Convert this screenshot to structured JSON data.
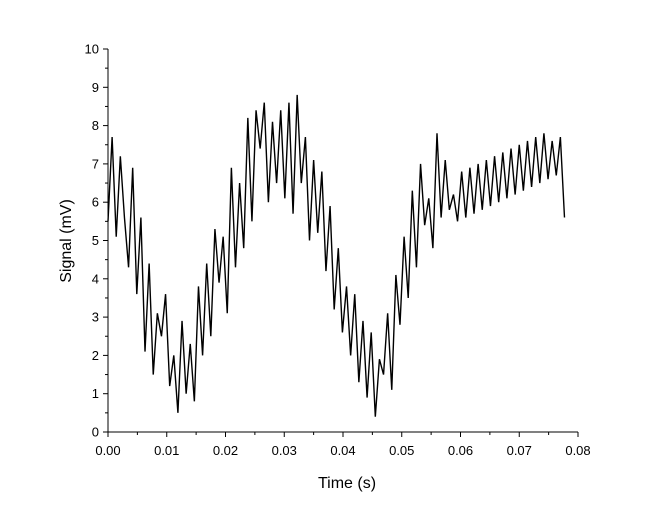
{
  "chart_data": {
    "type": "line",
    "title": "",
    "xlabel": "Time (s)",
    "ylabel": "Signal (mV)",
    "xlim": [
      0,
      0.08
    ],
    "ylim": [
      0,
      10
    ],
    "x_ticks": [
      0.0,
      0.01,
      0.02,
      0.03,
      0.04,
      0.05,
      0.06,
      0.07,
      0.08
    ],
    "x_tick_labels": [
      "0.00",
      "0.01",
      "0.02",
      "0.03",
      "0.04",
      "0.05",
      "0.06",
      "0.07",
      "0.08"
    ],
    "y_ticks": [
      0,
      1,
      2,
      3,
      4,
      5,
      6,
      7,
      8,
      9,
      10
    ],
    "y_tick_labels": [
      "0",
      "1",
      "2",
      "3",
      "4",
      "5",
      "6",
      "7",
      "8",
      "9",
      "10"
    ],
    "grid": false,
    "legend": "none",
    "line_color": "#000000",
    "series": [
      {
        "x": [
          0.0,
          0.0007,
          0.0014,
          0.0021,
          0.0028,
          0.0035,
          0.0042,
          0.0049,
          0.0056,
          0.0063,
          0.007,
          0.0077,
          0.0084,
          0.0091,
          0.0098,
          0.0105,
          0.0112,
          0.0119,
          0.0126,
          0.0133,
          0.014,
          0.0147,
          0.0154,
          0.0161,
          0.0168,
          0.0175,
          0.0182,
          0.0189,
          0.0196,
          0.0203,
          0.021,
          0.0217,
          0.0224,
          0.0231,
          0.0238,
          0.0245,
          0.0252,
          0.0259,
          0.0266,
          0.0273,
          0.028,
          0.0287,
          0.0294,
          0.0301,
          0.0308,
          0.0315,
          0.0322,
          0.0329,
          0.0336,
          0.0343,
          0.035,
          0.0357,
          0.0364,
          0.0371,
          0.0378,
          0.0385,
          0.0392,
          0.0399,
          0.0406,
          0.0413,
          0.042,
          0.0427,
          0.0434,
          0.0441,
          0.0448,
          0.0455,
          0.0462,
          0.0469,
          0.0476,
          0.0483,
          0.049,
          0.0497,
          0.0504,
          0.0511,
          0.0518,
          0.0525,
          0.0532,
          0.0539,
          0.0546,
          0.0553,
          0.056,
          0.0567,
          0.0574,
          0.0581,
          0.0588,
          0.0595,
          0.0602,
          0.0609,
          0.0616,
          0.0623,
          0.063,
          0.0637,
          0.0644,
          0.0651,
          0.0658,
          0.0665,
          0.0672,
          0.0679,
          0.0686,
          0.0693,
          0.07,
          0.0707,
          0.0714,
          0.0721,
          0.0728,
          0.0735,
          0.0742,
          0.0749,
          0.0756,
          0.0763,
          0.077,
          0.0777
        ],
        "y": [
          5.5,
          7.7,
          5.1,
          7.2,
          5.6,
          4.3,
          6.9,
          3.6,
          5.6,
          2.1,
          4.4,
          1.5,
          3.1,
          2.5,
          3.6,
          1.2,
          2.0,
          0.5,
          2.9,
          1.0,
          2.3,
          0.8,
          3.8,
          2.0,
          4.4,
          2.5,
          5.3,
          3.9,
          5.1,
          3.1,
          6.9,
          4.3,
          6.5,
          4.8,
          8.2,
          5.5,
          8.4,
          7.4,
          8.6,
          6.0,
          8.1,
          6.5,
          8.4,
          6.1,
          8.6,
          5.7,
          8.8,
          6.5,
          7.7,
          5.0,
          7.1,
          5.2,
          6.8,
          4.2,
          5.9,
          3.2,
          4.8,
          2.6,
          3.8,
          2.0,
          3.6,
          1.3,
          2.9,
          0.9,
          2.6,
          0.4,
          1.9,
          1.5,
          3.1,
          1.1,
          4.1,
          2.8,
          5.1,
          3.5,
          6.3,
          4.3,
          7.0,
          5.4,
          6.1,
          4.8,
          7.8,
          5.6,
          7.1,
          5.8,
          6.2,
          5.5,
          6.8,
          5.6,
          6.9,
          5.7,
          7.0,
          5.8,
          7.1,
          5.9,
          7.2,
          6.0,
          7.3,
          6.1,
          7.4,
          6.2,
          7.5,
          6.3,
          7.6,
          6.4,
          7.7,
          6.5,
          7.8,
          6.6,
          7.6,
          6.7,
          7.7,
          5.6
        ]
      }
    ]
  }
}
